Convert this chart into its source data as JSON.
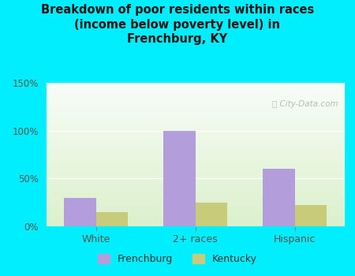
{
  "title": "Breakdown of poor residents within races\n(income below poverty level) in\nFrenchburg, KY",
  "categories": [
    "White",
    "2+ races",
    "Hispanic"
  ],
  "frenchburg_values": [
    30,
    100,
    60
  ],
  "kentucky_values": [
    15,
    25,
    22
  ],
  "frenchburg_color": "#b39ddb",
  "kentucky_color": "#c8cc7a",
  "bg_color": "#00eeff",
  "ylim": [
    0,
    150
  ],
  "yticks": [
    0,
    50,
    100,
    150
  ],
  "ytick_labels": [
    "0%",
    "50%",
    "100%",
    "150%"
  ],
  "bar_width": 0.32,
  "legend_labels": [
    "Frenchburg",
    "Kentucky"
  ],
  "watermark": "ⓘ City-Data.com",
  "title_color": "#111111",
  "tick_label_color": "#555555"
}
